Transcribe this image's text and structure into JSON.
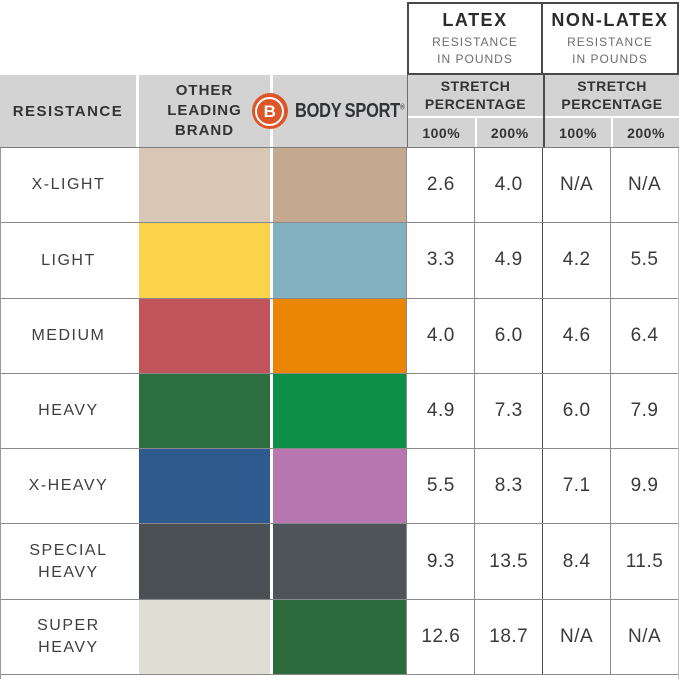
{
  "header": {
    "latex": {
      "title": "LATEX",
      "sub1": "RESISTANCE",
      "sub2": "IN POUNDS"
    },
    "non_latex": {
      "title": "NON-LATEX",
      "sub1": "RESISTANCE",
      "sub2": "IN POUNDS"
    },
    "resistance_label": "RESISTANCE",
    "other_brand": {
      "line1": "OTHER",
      "line2": "LEADING",
      "line3": "BRAND"
    },
    "brand": {
      "logo_letter": "B",
      "word1": "BODY",
      "word2": "SPORT",
      "reg": "®"
    },
    "stretch": {
      "line1": "STRETCH",
      "line2": "PERCENTAGE",
      "pct_100": "100%",
      "pct_200": "200%"
    }
  },
  "colors": {
    "brand_orange": "#dd5627",
    "header_gray": "#d3d3d3",
    "border_dark": "#4a4a4a",
    "text_dark": "#3a3a3a",
    "text_gray": "#6d6d6d"
  },
  "chart_data": {
    "type": "table",
    "title": "Body Sport vs Other Leading Brand — band resistance in pounds by stretch percentage",
    "columns": [
      "RESISTANCE",
      "OTHER LEADING BRAND",
      "BODY SPORT",
      "LATEX 100%",
      "LATEX 200%",
      "NON-LATEX 100%",
      "NON-LATEX 200%"
    ],
    "rows": [
      {
        "label": "X-LIGHT",
        "other_color": "#d9c7b5",
        "bodysport_color": "#c3a98f",
        "latex_100": "2.6",
        "latex_200": "4.0",
        "nonlatex_100": "N/A",
        "nonlatex_200": "N/A"
      },
      {
        "label": "LIGHT",
        "other_color": "#fbd34b",
        "bodysport_color": "#82b2c2",
        "latex_100": "3.3",
        "latex_200": "4.9",
        "nonlatex_100": "4.2",
        "nonlatex_200": "5.5"
      },
      {
        "label": "MEDIUM",
        "other_color": "#c2555c",
        "bodysport_color": "#eb8604",
        "latex_100": "4.0",
        "latex_200": "6.0",
        "nonlatex_100": "4.6",
        "nonlatex_200": "6.4"
      },
      {
        "label": "HEAVY",
        "other_color": "#2d6e3e",
        "bodysport_color": "#0d8f47",
        "latex_100": "4.9",
        "latex_200": "7.3",
        "nonlatex_100": "6.0",
        "nonlatex_200": "7.9"
      },
      {
        "label": "X-HEAVY",
        "other_color": "#2e5a90",
        "bodysport_color": "#b877b1",
        "latex_100": "5.5",
        "latex_200": "8.3",
        "nonlatex_100": "7.1",
        "nonlatex_200": "9.9"
      },
      {
        "label": "SPECIAL HEAVY",
        "other_color": "#4b5055",
        "bodysport_color": "#4f545a",
        "latex_100": "9.3",
        "latex_200": "13.5",
        "nonlatex_100": "8.4",
        "nonlatex_200": "11.5"
      },
      {
        "label": "SUPER HEAVY",
        "other_color": "#e0ddd4",
        "bodysport_color": "#2c6b3c",
        "latex_100": "12.6",
        "latex_200": "18.7",
        "nonlatex_100": "N/A",
        "nonlatex_200": "N/A"
      }
    ]
  }
}
